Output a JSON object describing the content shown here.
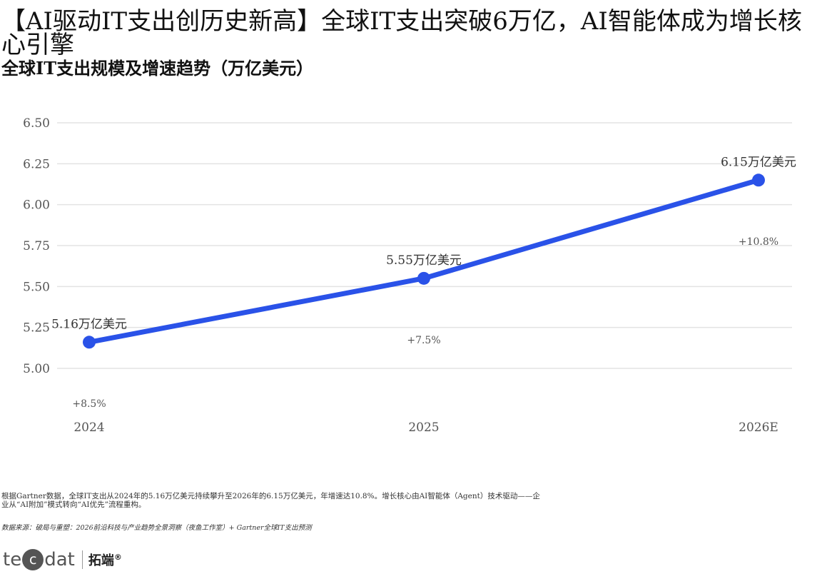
{
  "headline": "【AI驱动IT支出创历史新高】全球IT支出突破6万亿，AI智能体成为增长核心引擎",
  "subtitle": "全球IT支出规模及增速趋势（万亿美元）",
  "chart_data": {
    "type": "line",
    "title": "全球IT支出规模及增速趋势（万亿美元）",
    "categories": [
      "2024",
      "2025",
      "2026E"
    ],
    "values": [
      5.16,
      5.55,
      6.15
    ],
    "value_labels": [
      "5.16万亿美元",
      "5.55万亿美元",
      "6.15万亿美元"
    ],
    "growth_labels": [
      "+8.5%",
      "+7.5%",
      "+10.8%"
    ],
    "ylim": [
      5.0,
      6.5
    ],
    "yticks": [
      "5.00",
      "5.25",
      "5.50",
      "5.75",
      "6.00",
      "6.25",
      "6.50"
    ],
    "grid": true,
    "color": "#2a52e8"
  },
  "note": "根据Gartner数据，全球IT支出从2024年的5.16万亿美元持续攀升至2026年的6.15万亿美元，年增速达10.8%。增长核心由AI智能体（Agent）技术驱动——企业从“AI附加”模式转向“AI优先”流程重构。",
  "source": "数据来源：破局与重塑：2026前沿科技与产业趋势全景洞察（夜鱼工作室）+ Gartner全球IT支出预测",
  "logo": {
    "pre": "te",
    "circle": "c",
    "post": "dat",
    "cn": "拓端",
    "mark": "®",
    "icon": "tecdat-logo"
  }
}
